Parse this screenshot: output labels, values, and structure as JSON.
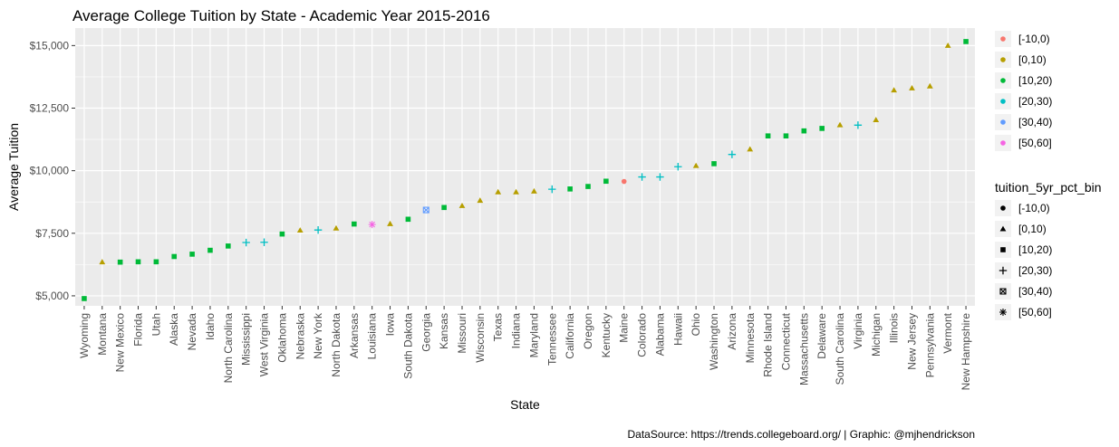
{
  "chart_data": {
    "type": "scatter",
    "title": "Average College Tuition by State - Academic Year 2015-2016",
    "xlabel": "State",
    "ylabel": "Average Tuition",
    "caption": "DataSource: https://trends.collegeboard.org/ | Graphic: @mjhendrickson",
    "ylim": [
      4600,
      15700
    ],
    "y_ticks": [
      5000,
      7500,
      10000,
      12500,
      15000
    ],
    "y_tick_labels": [
      "$5,000",
      "$7,500",
      "$10,000",
      "$12,500",
      "$15,000"
    ],
    "grid": true,
    "legend_position": "right",
    "color_legend": {
      "title": "",
      "entries": [
        {
          "label": "[-10,0)",
          "color": "#F8766D"
        },
        {
          "label": "[0,10)",
          "color": "#B79F00"
        },
        {
          "label": "[10,20)",
          "color": "#00BA38"
        },
        {
          "label": "[20,30)",
          "color": "#00BFC4"
        },
        {
          "label": "[30,40)",
          "color": "#619CFF"
        },
        {
          "label": "[50,60]",
          "color": "#F564E3"
        }
      ]
    },
    "shape_legend": {
      "title": "tuition_5yr_pct_bin",
      "entries": [
        {
          "label": "[-10,0)",
          "shape": "circle"
        },
        {
          "label": "[0,10)",
          "shape": "triangle"
        },
        {
          "label": "[10,20)",
          "shape": "square"
        },
        {
          "label": "[20,30)",
          "shape": "plus"
        },
        {
          "label": "[30,40)",
          "shape": "square-x"
        },
        {
          "label": "[50,60]",
          "shape": "asterisk"
        }
      ]
    },
    "points": [
      {
        "state": "Wyoming",
        "value": 4891,
        "bin": 2
      },
      {
        "state": "Montana",
        "value": 6352,
        "bin": 1
      },
      {
        "state": "New Mexico",
        "value": 6347,
        "bin": 2
      },
      {
        "state": "Florida",
        "value": 6360,
        "bin": 2
      },
      {
        "state": "Utah",
        "value": 6360,
        "bin": 2
      },
      {
        "state": "Alaska",
        "value": 6571,
        "bin": 2
      },
      {
        "state": "Nevada",
        "value": 6665,
        "bin": 2
      },
      {
        "state": "Idaho",
        "value": 6820,
        "bin": 2
      },
      {
        "state": "North Carolina",
        "value": 6990,
        "bin": 2
      },
      {
        "state": "Mississippi",
        "value": 7130,
        "bin": 3
      },
      {
        "state": "West Virginia",
        "value": 7140,
        "bin": 3
      },
      {
        "state": "Oklahoma",
        "value": 7470,
        "bin": 2
      },
      {
        "state": "Nebraska",
        "value": 7620,
        "bin": 1
      },
      {
        "state": "New York",
        "value": 7630,
        "bin": 3
      },
      {
        "state": "North Dakota",
        "value": 7700,
        "bin": 1
      },
      {
        "state": "Arkansas",
        "value": 7870,
        "bin": 2
      },
      {
        "state": "Louisiana",
        "value": 7850,
        "bin": 5
      },
      {
        "state": "Iowa",
        "value": 7880,
        "bin": 1
      },
      {
        "state": "South Dakota",
        "value": 8060,
        "bin": 2
      },
      {
        "state": "Georgia",
        "value": 8430,
        "bin": 4
      },
      {
        "state": "Kansas",
        "value": 8530,
        "bin": 2
      },
      {
        "state": "Missouri",
        "value": 8600,
        "bin": 1
      },
      {
        "state": "Wisconsin",
        "value": 8810,
        "bin": 1
      },
      {
        "state": "Texas",
        "value": 9150,
        "bin": 1
      },
      {
        "state": "Indiana",
        "value": 9150,
        "bin": 1
      },
      {
        "state": "Maryland",
        "value": 9180,
        "bin": 1
      },
      {
        "state": "Tennessee",
        "value": 9260,
        "bin": 3
      },
      {
        "state": "California",
        "value": 9270,
        "bin": 2
      },
      {
        "state": "Oregon",
        "value": 9370,
        "bin": 2
      },
      {
        "state": "Kentucky",
        "value": 9580,
        "bin": 2
      },
      {
        "state": "Maine",
        "value": 9570,
        "bin": 0
      },
      {
        "state": "Colorado",
        "value": 9750,
        "bin": 3
      },
      {
        "state": "Alabama",
        "value": 9750,
        "bin": 3
      },
      {
        "state": "Hawaii",
        "value": 10160,
        "bin": 3
      },
      {
        "state": "Ohio",
        "value": 10200,
        "bin": 1
      },
      {
        "state": "Washington",
        "value": 10280,
        "bin": 2
      },
      {
        "state": "Arizona",
        "value": 10650,
        "bin": 3
      },
      {
        "state": "Minnesota",
        "value": 10860,
        "bin": 1
      },
      {
        "state": "Rhode Island",
        "value": 11390,
        "bin": 2
      },
      {
        "state": "Connecticut",
        "value": 11390,
        "bin": 2
      },
      {
        "state": "Massachusetts",
        "value": 11590,
        "bin": 2
      },
      {
        "state": "Delaware",
        "value": 11690,
        "bin": 2
      },
      {
        "state": "South Carolina",
        "value": 11830,
        "bin": 1
      },
      {
        "state": "Virginia",
        "value": 11820,
        "bin": 3
      },
      {
        "state": "Michigan",
        "value": 12030,
        "bin": 1
      },
      {
        "state": "Illinois",
        "value": 13220,
        "bin": 1
      },
      {
        "state": "New Jersey",
        "value": 13300,
        "bin": 1
      },
      {
        "state": "Pennsylvania",
        "value": 13380,
        "bin": 1
      },
      {
        "state": "Vermont",
        "value": 15000,
        "bin": 1
      },
      {
        "state": "New Hampshire",
        "value": 15160,
        "bin": 2
      }
    ]
  }
}
